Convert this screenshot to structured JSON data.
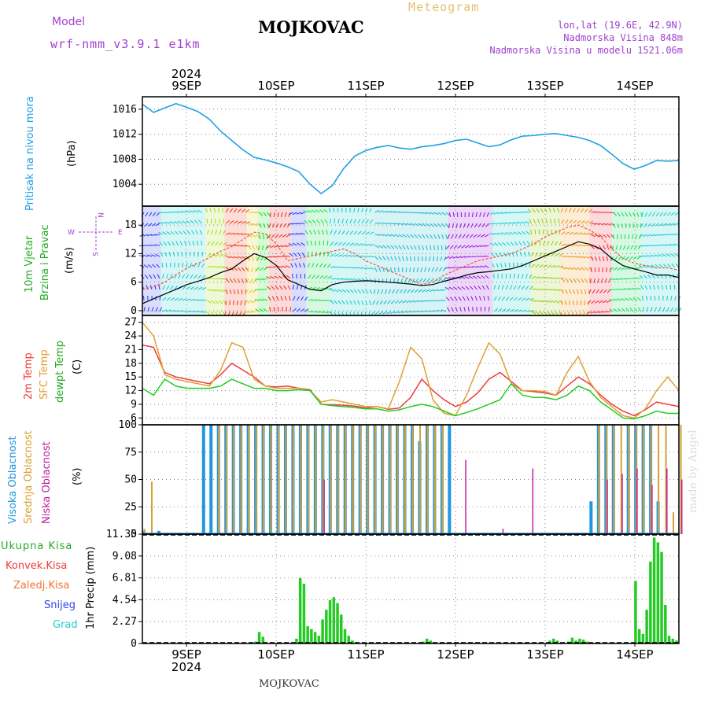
{
  "header": {
    "model_label": "Model",
    "model_name": "wrf-nmm_v3.9.1 e1km",
    "station": "MOJKOVAC",
    "product": "Meteogram",
    "coords": "lon,lat (19.6E, 42.9N)",
    "elev": "Nadmorska Visina 848m",
    "elev_model": "Nadmorska Visina u modelu 1521.06m",
    "footer_station": "MOJKOVAC",
    "credit": "made by Angel"
  },
  "colors": {
    "pressure": "#1fa0e6",
    "temp2m": "#ee3b3b",
    "sfc": "#e0a030",
    "dew": "#22cc22",
    "high": "#1f96e0",
    "mid": "#d9a030",
    "low": "#c020a0",
    "precip": "#22cc22",
    "purple": "#a040d0",
    "gold": "#e6c070"
  },
  "chart_data": [
    {
      "type": "line",
      "panel": "pressure",
      "ylabel": "(hPa)",
      "side_labels": [
        "Pritisak na nivou mora"
      ],
      "yticks": [
        "1004",
        "1008",
        "1012",
        "1016"
      ],
      "ylim": [
        1000.5,
        1018
      ],
      "x_hours": [
        0,
        3,
        6,
        9,
        12,
        15,
        18,
        21,
        24,
        27,
        30,
        33,
        36,
        39,
        42,
        45,
        48,
        51,
        54,
        57,
        60,
        63,
        66,
        69,
        72,
        75,
        78,
        81,
        84,
        87,
        90,
        93,
        96,
        99,
        102,
        105,
        108,
        111,
        114,
        117,
        120,
        123,
        126,
        129,
        132,
        135,
        138,
        141,
        144
      ],
      "series": [
        {
          "values": [
            1016.8,
            1015.5,
            1016.2,
            1016.9,
            1016.3,
            1015.6,
            1014.4,
            1012.5,
            1011.0,
            1009.5,
            1008.3,
            1007.9,
            1007.4,
            1006.8,
            1006.0,
            1004.0,
            1002.5,
            1003.8,
            1006.5,
            1008.5,
            1009.4,
            1009.9,
            1010.2,
            1009.8,
            1009.6,
            1010.0,
            1010.2,
            1010.5,
            1011.0,
            1011.2,
            1010.6,
            1010.0,
            1010.3,
            1011.1,
            1011.7,
            1011.8,
            1012.0,
            1012.1,
            1011.8,
            1011.5,
            1011.0,
            1010.2,
            1008.8,
            1007.3,
            1006.4,
            1007.0,
            1007.8,
            1007.7,
            1007.8
          ]
        }
      ]
    },
    {
      "type": "line",
      "panel": "wind",
      "ylabel": "(m/s)",
      "side_labels": [
        "10m Vjetar",
        "Brzina i Pravac"
      ],
      "compass": [
        "W",
        "E",
        "N",
        "S"
      ],
      "yticks": [
        "0",
        "6",
        "12",
        "18"
      ],
      "ylim": [
        -1,
        22
      ],
      "x_hours": [
        0,
        3,
        6,
        9,
        12,
        15,
        18,
        21,
        24,
        27,
        30,
        33,
        36,
        39,
        42,
        45,
        48,
        51,
        54,
        57,
        60,
        63,
        66,
        69,
        72,
        75,
        78,
        81,
        84,
        87,
        90,
        93,
        96,
        99,
        102,
        105,
        108,
        111,
        114,
        117,
        120,
        123,
        126,
        129,
        132,
        135,
        138,
        141,
        144
      ],
      "series": [
        {
          "values": [
            1.5,
            2.5,
            3.5,
            4.5,
            5.5,
            6.2,
            7.0,
            8.0,
            8.8,
            10.5,
            12.0,
            11.2,
            9.5,
            6.5,
            5.5,
            4.5,
            4.2,
            5.5,
            6.0,
            6.2,
            6.3,
            6.2,
            6.0,
            5.8,
            5.6,
            5.3,
            5.5,
            6.2,
            6.8,
            7.5,
            8.0,
            8.2,
            8.5,
            8.8,
            9.5,
            10.5,
            11.5,
            12.5,
            13.5,
            14.5,
            14.0,
            13.0,
            11.0,
            9.5,
            8.8,
            8.2,
            7.5,
            7.5,
            7.0
          ]
        },
        {
          "values": [
            4.5,
            5.0,
            6.0,
            7.5,
            9.0,
            10.0,
            11.2,
            12.5,
            13.5,
            15.0,
            16.5,
            16.2,
            14.0,
            10.5,
            11.0,
            11.5,
            12.0,
            12.5,
            13.0,
            12.0,
            10.5,
            9.5,
            8.5,
            7.5,
            6.5,
            5.5,
            6.0,
            7.5,
            8.5,
            9.5,
            10.5,
            11.0,
            11.5,
            12.0,
            13.0,
            14.0,
            15.5,
            16.5,
            17.5,
            18.0,
            17.0,
            15.5,
            13.0,
            11.0,
            10.0,
            9.5,
            9.0,
            9.0,
            8.5
          ]
        }
      ],
      "bands": [
        {
          "from": 0,
          "to": 5,
          "color": "#3344ee"
        },
        {
          "from": 5,
          "to": 17,
          "color": "#22cccc"
        },
        {
          "from": 17,
          "to": 22,
          "color": "#aadd22"
        },
        {
          "from": 22,
          "to": 28,
          "color": "#ee4422"
        },
        {
          "from": 28,
          "to": 31,
          "color": "#ddcc22"
        },
        {
          "from": 31,
          "to": 34,
          "color": "#22dd22"
        },
        {
          "from": 34,
          "to": 40,
          "color": "#ee3333"
        },
        {
          "from": 40,
          "to": 44,
          "color": "#3344ee"
        },
        {
          "from": 44,
          "to": 50,
          "color": "#22dd55"
        },
        {
          "from": 50,
          "to": 62,
          "color": "#22cccc"
        },
        {
          "from": 62,
          "to": 82,
          "color": "#22bbcc"
        },
        {
          "from": 82,
          "to": 94,
          "color": "#9922dd"
        },
        {
          "from": 94,
          "to": 104,
          "color": "#22cccc"
        },
        {
          "from": 104,
          "to": 112,
          "color": "#99cc22"
        },
        {
          "from": 112,
          "to": 120,
          "color": "#ee9922"
        },
        {
          "from": 120,
          "to": 126,
          "color": "#ee3344"
        },
        {
          "from": 126,
          "to": 134,
          "color": "#22dd66"
        },
        {
          "from": 134,
          "to": 144,
          "color": "#22cccc"
        }
      ]
    },
    {
      "type": "line",
      "panel": "temperature",
      "ylabel": "(C)",
      "side_labels": [
        "2m Temp",
        "SFC Temp",
        "dewpt Temp"
      ],
      "yticks": [
        "6",
        "9",
        "12",
        "15",
        "18",
        "21",
        "24",
        "27"
      ],
      "ylim": [
        4.5,
        28.5
      ],
      "x_hours": [
        0,
        3,
        6,
        9,
        12,
        15,
        18,
        21,
        24,
        27,
        30,
        33,
        36,
        39,
        42,
        45,
        48,
        51,
        54,
        57,
        60,
        63,
        66,
        69,
        72,
        75,
        78,
        81,
        84,
        87,
        90,
        93,
        96,
        99,
        102,
        105,
        108,
        111,
        114,
        117,
        120,
        123,
        126,
        129,
        132,
        135,
        138,
        141,
        144
      ],
      "series": [
        {
          "name": "2m Temp",
          "values": [
            22.0,
            21.5,
            16.0,
            15.0,
            14.5,
            14.0,
            13.5,
            15.5,
            18.0,
            16.5,
            15.0,
            13.0,
            12.8,
            13.0,
            12.5,
            12.2,
            9.0,
            8.9,
            8.8,
            8.6,
            8.2,
            8.5,
            7.9,
            8.2,
            10.5,
            14.5,
            12.0,
            10.0,
            8.5,
            9.5,
            11.5,
            14.5,
            16.0,
            14.0,
            12.0,
            11.8,
            11.5,
            11.0,
            13.0,
            15.0,
            13.5,
            11.0,
            9.0,
            7.5,
            6.5,
            7.8,
            9.5,
            9.0,
            8.5
          ]
        },
        {
          "name": "SFC Temp",
          "values": [
            27.0,
            24.0,
            15.5,
            14.5,
            14.0,
            13.5,
            13.0,
            16.5,
            22.5,
            21.5,
            14.5,
            13.0,
            12.5,
            12.5,
            12.5,
            12.0,
            9.5,
            10.0,
            9.5,
            9.0,
            8.5,
            8.5,
            8.0,
            14.0,
            21.5,
            19.0,
            10.0,
            7.0,
            6.5,
            11.0,
            17.0,
            22.5,
            20.0,
            13.5,
            12.0,
            12.0,
            11.8,
            11.0,
            16.0,
            19.5,
            14.0,
            10.5,
            8.5,
            6.5,
            6.0,
            8.0,
            12.0,
            15.0,
            12.0
          ]
        },
        {
          "name": "dewpt Temp",
          "values": [
            12.5,
            11.0,
            14.5,
            13.0,
            12.5,
            12.5,
            12.5,
            13.0,
            14.5,
            13.5,
            12.5,
            12.5,
            12.0,
            12.0,
            12.2,
            12.0,
            9.0,
            8.7,
            8.5,
            8.3,
            8.0,
            8.0,
            7.5,
            7.8,
            8.5,
            9.0,
            8.5,
            7.5,
            6.5,
            7.2,
            8.0,
            9.0,
            10.0,
            13.5,
            11.0,
            10.5,
            10.5,
            10.0,
            11.0,
            13.0,
            12.0,
            9.5,
            7.8,
            6.0,
            5.8,
            6.5,
            7.5,
            7.0,
            7.0
          ]
        }
      ]
    },
    {
      "type": "bar",
      "panel": "clouds",
      "ylabel": "(%)",
      "side_labels": [
        "Visoka Oblacnost",
        "Srednja Oblacnost",
        "Niska Oblacnost"
      ],
      "yticks": [
        "0",
        "25",
        "50",
        "75",
        "100"
      ],
      "ylim": [
        0,
        100
      ],
      "x_hours": [
        0,
        2,
        4,
        6,
        8,
        10,
        12,
        14,
        16,
        18,
        20,
        22,
        24,
        26,
        28,
        30,
        32,
        34,
        36,
        38,
        40,
        42,
        44,
        46,
        48,
        50,
        52,
        54,
        56,
        58,
        60,
        62,
        64,
        66,
        68,
        70,
        72,
        74,
        76,
        78,
        80,
        82,
        84,
        86,
        88,
        90,
        92,
        94,
        96,
        98,
        100,
        102,
        104,
        106,
        108,
        110,
        112,
        114,
        116,
        118,
        120,
        122,
        124,
        126,
        128,
        130,
        132,
        134,
        136,
        138,
        140,
        142,
        144
      ],
      "series": [
        {
          "name": "Visoka Oblacnost",
          "values": [
            3,
            0,
            3,
            0,
            0,
            0,
            0,
            0,
            100,
            100,
            100,
            100,
            100,
            100,
            100,
            100,
            100,
            100,
            100,
            100,
            100,
            100,
            100,
            100,
            100,
            100,
            100,
            100,
            100,
            100,
            100,
            100,
            100,
            100,
            100,
            100,
            100,
            85,
            100,
            100,
            100,
            100,
            0,
            0,
            0,
            0,
            0,
            0,
            0,
            0,
            0,
            0,
            0,
            0,
            0,
            0,
            0,
            0,
            0,
            0,
            30,
            100,
            100,
            100,
            0,
            100,
            100,
            100,
            100,
            30,
            0,
            0,
            0
          ]
        },
        {
          "name": "Srednja Oblacnost",
          "values": [
            5,
            48,
            0,
            0,
            0,
            0,
            0,
            0,
            0,
            0,
            100,
            100,
            100,
            100,
            100,
            100,
            100,
            100,
            100,
            100,
            100,
            100,
            100,
            100,
            100,
            100,
            100,
            100,
            100,
            100,
            100,
            100,
            100,
            100,
            100,
            100,
            100,
            100,
            100,
            100,
            100,
            0,
            0,
            0,
            0,
            0,
            0,
            0,
            0,
            0,
            0,
            0,
            0,
            0,
            0,
            0,
            0,
            0,
            0,
            0,
            0,
            100,
            100,
            100,
            100,
            100,
            100,
            100,
            100,
            100,
            100,
            20,
            100
          ]
        },
        {
          "name": "Niska Oblacnost",
          "values": [
            0,
            0,
            0,
            0,
            0,
            0,
            0,
            0,
            0,
            0,
            0,
            0,
            0,
            0,
            0,
            0,
            0,
            0,
            0,
            0,
            0,
            0,
            0,
            0,
            50,
            0,
            0,
            0,
            0,
            0,
            0,
            0,
            0,
            0,
            0,
            0,
            0,
            0,
            0,
            0,
            0,
            0,
            0,
            68,
            0,
            0,
            0,
            0,
            5,
            0,
            0,
            0,
            60,
            0,
            0,
            0,
            0,
            0,
            0,
            0,
            0,
            0,
            50,
            0,
            55,
            0,
            60,
            0,
            45,
            0,
            60,
            0,
            50
          ]
        }
      ]
    },
    {
      "type": "bar",
      "panel": "precip",
      "ylabel": "1hr Precip (mm)",
      "side_labels": [
        "Ukupna Kisa",
        "Konvek.Kisa",
        "Zaledj.Kisa",
        "Snijeg",
        "Grad"
      ],
      "yticks": [
        "0",
        "2.27",
        "4.54",
        "6.81",
        "9.08",
        "11.35"
      ],
      "ylim": [
        0,
        11.35
      ],
      "x_hours": [
        30,
        31,
        32,
        41,
        42,
        43,
        44,
        45,
        46,
        47,
        48,
        49,
        50,
        51,
        52,
        53,
        54,
        55,
        56,
        68,
        75,
        76,
        77,
        109,
        110,
        111,
        114,
        115,
        116,
        117,
        118,
        119,
        132,
        133,
        134,
        135,
        136,
        137,
        138,
        139,
        140,
        141,
        142,
        143
      ],
      "series": [
        {
          "name": "Ukupna Kisa",
          "values": [
            0.2,
            1.2,
            0.7,
            0.5,
            6.8,
            6.2,
            1.8,
            1.5,
            1.2,
            0.8,
            2.5,
            3.5,
            4.5,
            4.8,
            4.2,
            3.0,
            1.5,
            0.8,
            0.3,
            0.1,
            0.2,
            0.5,
            0.3,
            0.3,
            0.5,
            0.3,
            0.2,
            0.6,
            0.3,
            0.5,
            0.4,
            0.2,
            6.5,
            1.5,
            1.0,
            3.5,
            8.5,
            11.0,
            10.5,
            9.5,
            4.0,
            0.8,
            0.5,
            0.3
          ]
        }
      ]
    }
  ],
  "xaxis": {
    "year": "2024",
    "days": [
      "9SEP",
      "10SEP",
      "11SEP",
      "12SEP",
      "13SEP",
      "14SEP"
    ]
  }
}
